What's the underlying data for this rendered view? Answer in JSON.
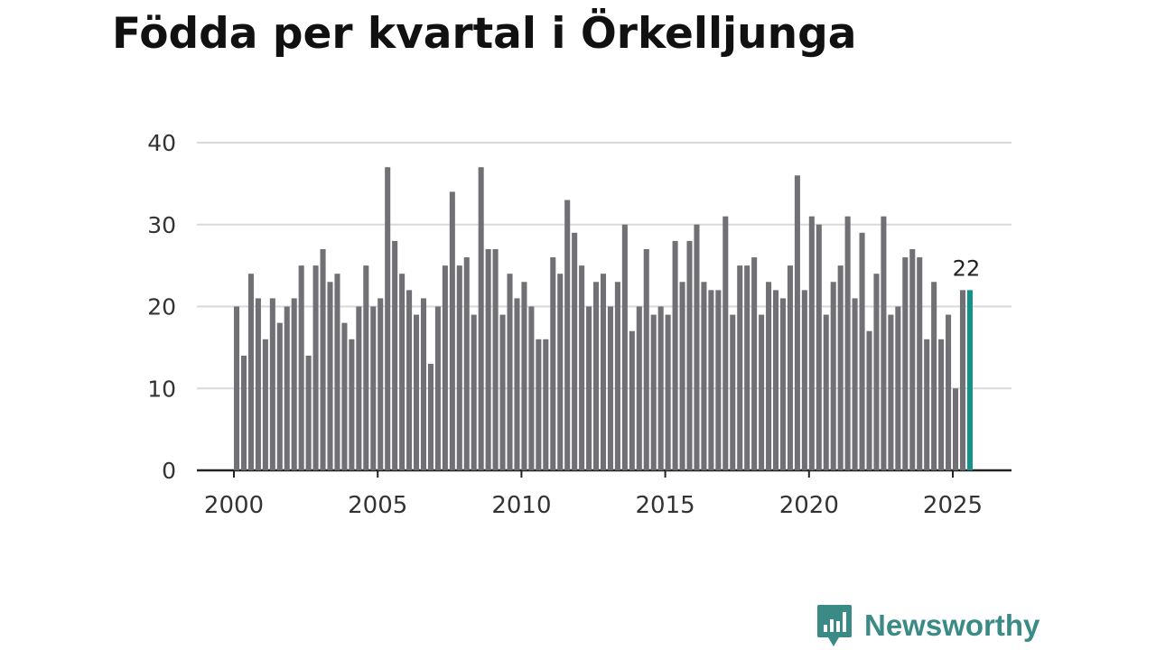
{
  "chart_data": {
    "type": "bar",
    "title": "Födda per kvartal i Örkelljunga",
    "xlabel": "",
    "ylabel": "",
    "ylim": [
      0,
      40
    ],
    "y_ticks": [
      "0",
      "10",
      "20",
      "30",
      "40"
    ],
    "x_ticks": [
      "2000",
      "2005",
      "2010",
      "2015",
      "2020",
      "2025"
    ],
    "start_year": 2000,
    "periods_per_year": 4,
    "values": [
      20,
      14,
      24,
      21,
      16,
      21,
      18,
      20,
      21,
      25,
      14,
      25,
      27,
      23,
      24,
      18,
      16,
      20,
      25,
      20,
      21,
      37,
      28,
      24,
      22,
      19,
      21,
      13,
      20,
      25,
      34,
      25,
      26,
      19,
      37,
      27,
      27,
      19,
      24,
      21,
      23,
      20,
      16,
      16,
      26,
      24,
      33,
      29,
      25,
      20,
      23,
      24,
      20,
      23,
      30,
      17,
      20,
      27,
      19,
      20,
      19,
      28,
      23,
      28,
      30,
      23,
      22,
      22,
      31,
      19,
      25,
      25,
      26,
      19,
      23,
      22,
      21,
      25,
      36,
      22,
      31,
      30,
      19,
      23,
      25,
      31,
      21,
      29,
      17,
      24,
      31,
      19,
      20,
      26,
      27,
      26,
      16,
      23,
      16,
      19,
      10,
      22,
      22
    ],
    "highlight_last": true,
    "last_label": "22",
    "colors": {
      "bar": "#717075",
      "highlight": "#15918a",
      "grid": "#d9d9d9",
      "axis": "#222222"
    }
  },
  "branding": {
    "logo_text": "Newsworthy",
    "logo_color": "#3a8a86"
  }
}
